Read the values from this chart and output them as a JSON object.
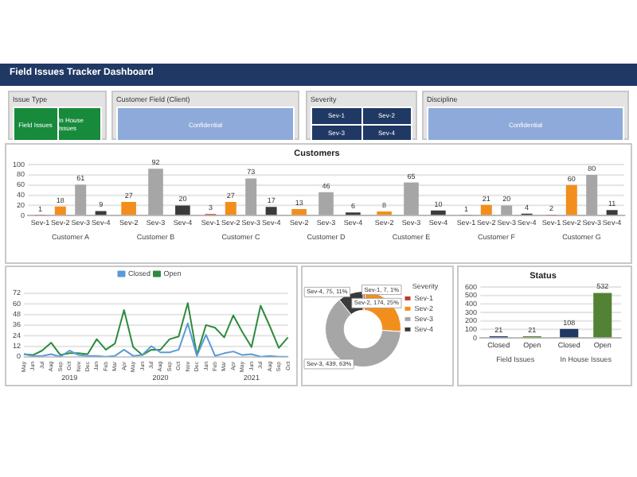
{
  "chart_data": [
    {
      "type": "other",
      "title": "Field Issues Tracker Dashboard"
    },
    {
      "type": "other",
      "title": "Issue Type",
      "annotations": [
        "Field Issues",
        "In House Issues"
      ]
    },
    {
      "type": "other",
      "title": "Customer Field (Client)",
      "annotations": [
        "Confidential"
      ]
    },
    {
      "type": "other",
      "title": "Severity",
      "annotations": [
        "Sev-1",
        "Sev-2",
        "Sev-3",
        "Sev-4"
      ]
    },
    {
      "type": "other",
      "title": "Discipline",
      "annotations": [
        "Confidential"
      ]
    },
    {
      "type": "bar",
      "title": "Customers",
      "categories": [
        "Customer A",
        "Customer B",
        "Customer C",
        "Customer D",
        "Customer E",
        "Customer F",
        "Customer G"
      ],
      "series": [
        {
          "name": "Sev-1",
          "color": "#c0392b",
          "values": [
            1,
            null,
            3,
            null,
            null,
            1,
            2
          ]
        },
        {
          "name": "Sev-2",
          "color": "#f28e1c",
          "values": [
            18,
            27,
            27,
            13,
            8,
            21,
            60
          ]
        },
        {
          "name": "Sev-3",
          "color": "#a6a6a6",
          "values": [
            61,
            92,
            73,
            46,
            65,
            20,
            80
          ]
        },
        {
          "name": "Sev-4",
          "color": "#3a3a3a",
          "values": [
            9,
            20,
            17,
            6,
            10,
            4,
            11
          ]
        }
      ],
      "ylim": [
        0,
        100
      ],
      "yticks": [
        0,
        20,
        40,
        60,
        80,
        100
      ],
      "grid": "y",
      "data_labels": true
    },
    {
      "type": "line",
      "categories": [
        "May",
        "Jun",
        "Jul",
        "Aug",
        "Sep",
        "Oct",
        "Nov",
        "Dec",
        "Jan",
        "Feb",
        "Mar",
        "Apr",
        "May",
        "Jun",
        "Jul",
        "Aug",
        "Sep",
        "Oct",
        "Nov",
        "Dec",
        "Jan",
        "Feb",
        "Mar",
        "Apr",
        "May",
        "Jun",
        "Jul",
        "Aug",
        "Sep",
        "Oct"
      ],
      "annotations": [
        "2019",
        "2020",
        "2021"
      ],
      "series": [
        {
          "name": "Closed",
          "color": "#5b9bd5",
          "values": [
            3,
            1,
            1,
            3,
            0,
            7,
            2,
            1,
            1,
            0,
            1,
            8,
            1,
            2,
            12,
            5,
            5,
            8,
            38,
            1,
            25,
            1,
            4,
            6,
            2,
            3,
            0,
            1,
            0,
            0
          ]
        },
        {
          "name": "Open",
          "color": "#2e8b3e",
          "values": [
            3,
            2,
            7,
            16,
            2,
            4,
            4,
            3,
            20,
            8,
            15,
            53,
            11,
            2,
            8,
            8,
            20,
            23,
            61,
            2,
            36,
            33,
            22,
            47,
            28,
            11,
            58,
            35,
            10,
            22
          ]
        }
      ],
      "ylim": [
        0,
        72
      ],
      "yticks": [
        0,
        12,
        24,
        36,
        48,
        60,
        72
      ],
      "grid": "y",
      "legend": "top"
    },
    {
      "type": "donut",
      "categories": [
        "Sev-1",
        "Sev-2",
        "Sev-3",
        "Sev-4"
      ],
      "values": [
        7,
        174,
        439,
        75
      ],
      "colors": [
        "#c0392b",
        "#f28e1c",
        "#a6a6a6",
        "#3a3a3a"
      ],
      "value_labels": [
        "Sev-1, 7, 1%",
        "Sev-2, 174, 25%",
        "Sev-3, 439, 63%",
        "Sev-4, 75, 11%"
      ],
      "legend": "top right",
      "legend_title": "Severity"
    },
    {
      "type": "bar",
      "title": "Status",
      "categories": [
        "Field Issues",
        "In House Issues"
      ],
      "series": [
        {
          "name": "Closed",
          "color": "#1f3864",
          "values": [
            21,
            108
          ]
        },
        {
          "name": "Open",
          "color": "#548235",
          "values": [
            21,
            532
          ]
        }
      ],
      "ylim": [
        0,
        600
      ],
      "yticks": [
        0,
        100,
        200,
        300,
        400,
        500,
        600
      ],
      "grid": "y",
      "data_labels": true
    }
  ]
}
